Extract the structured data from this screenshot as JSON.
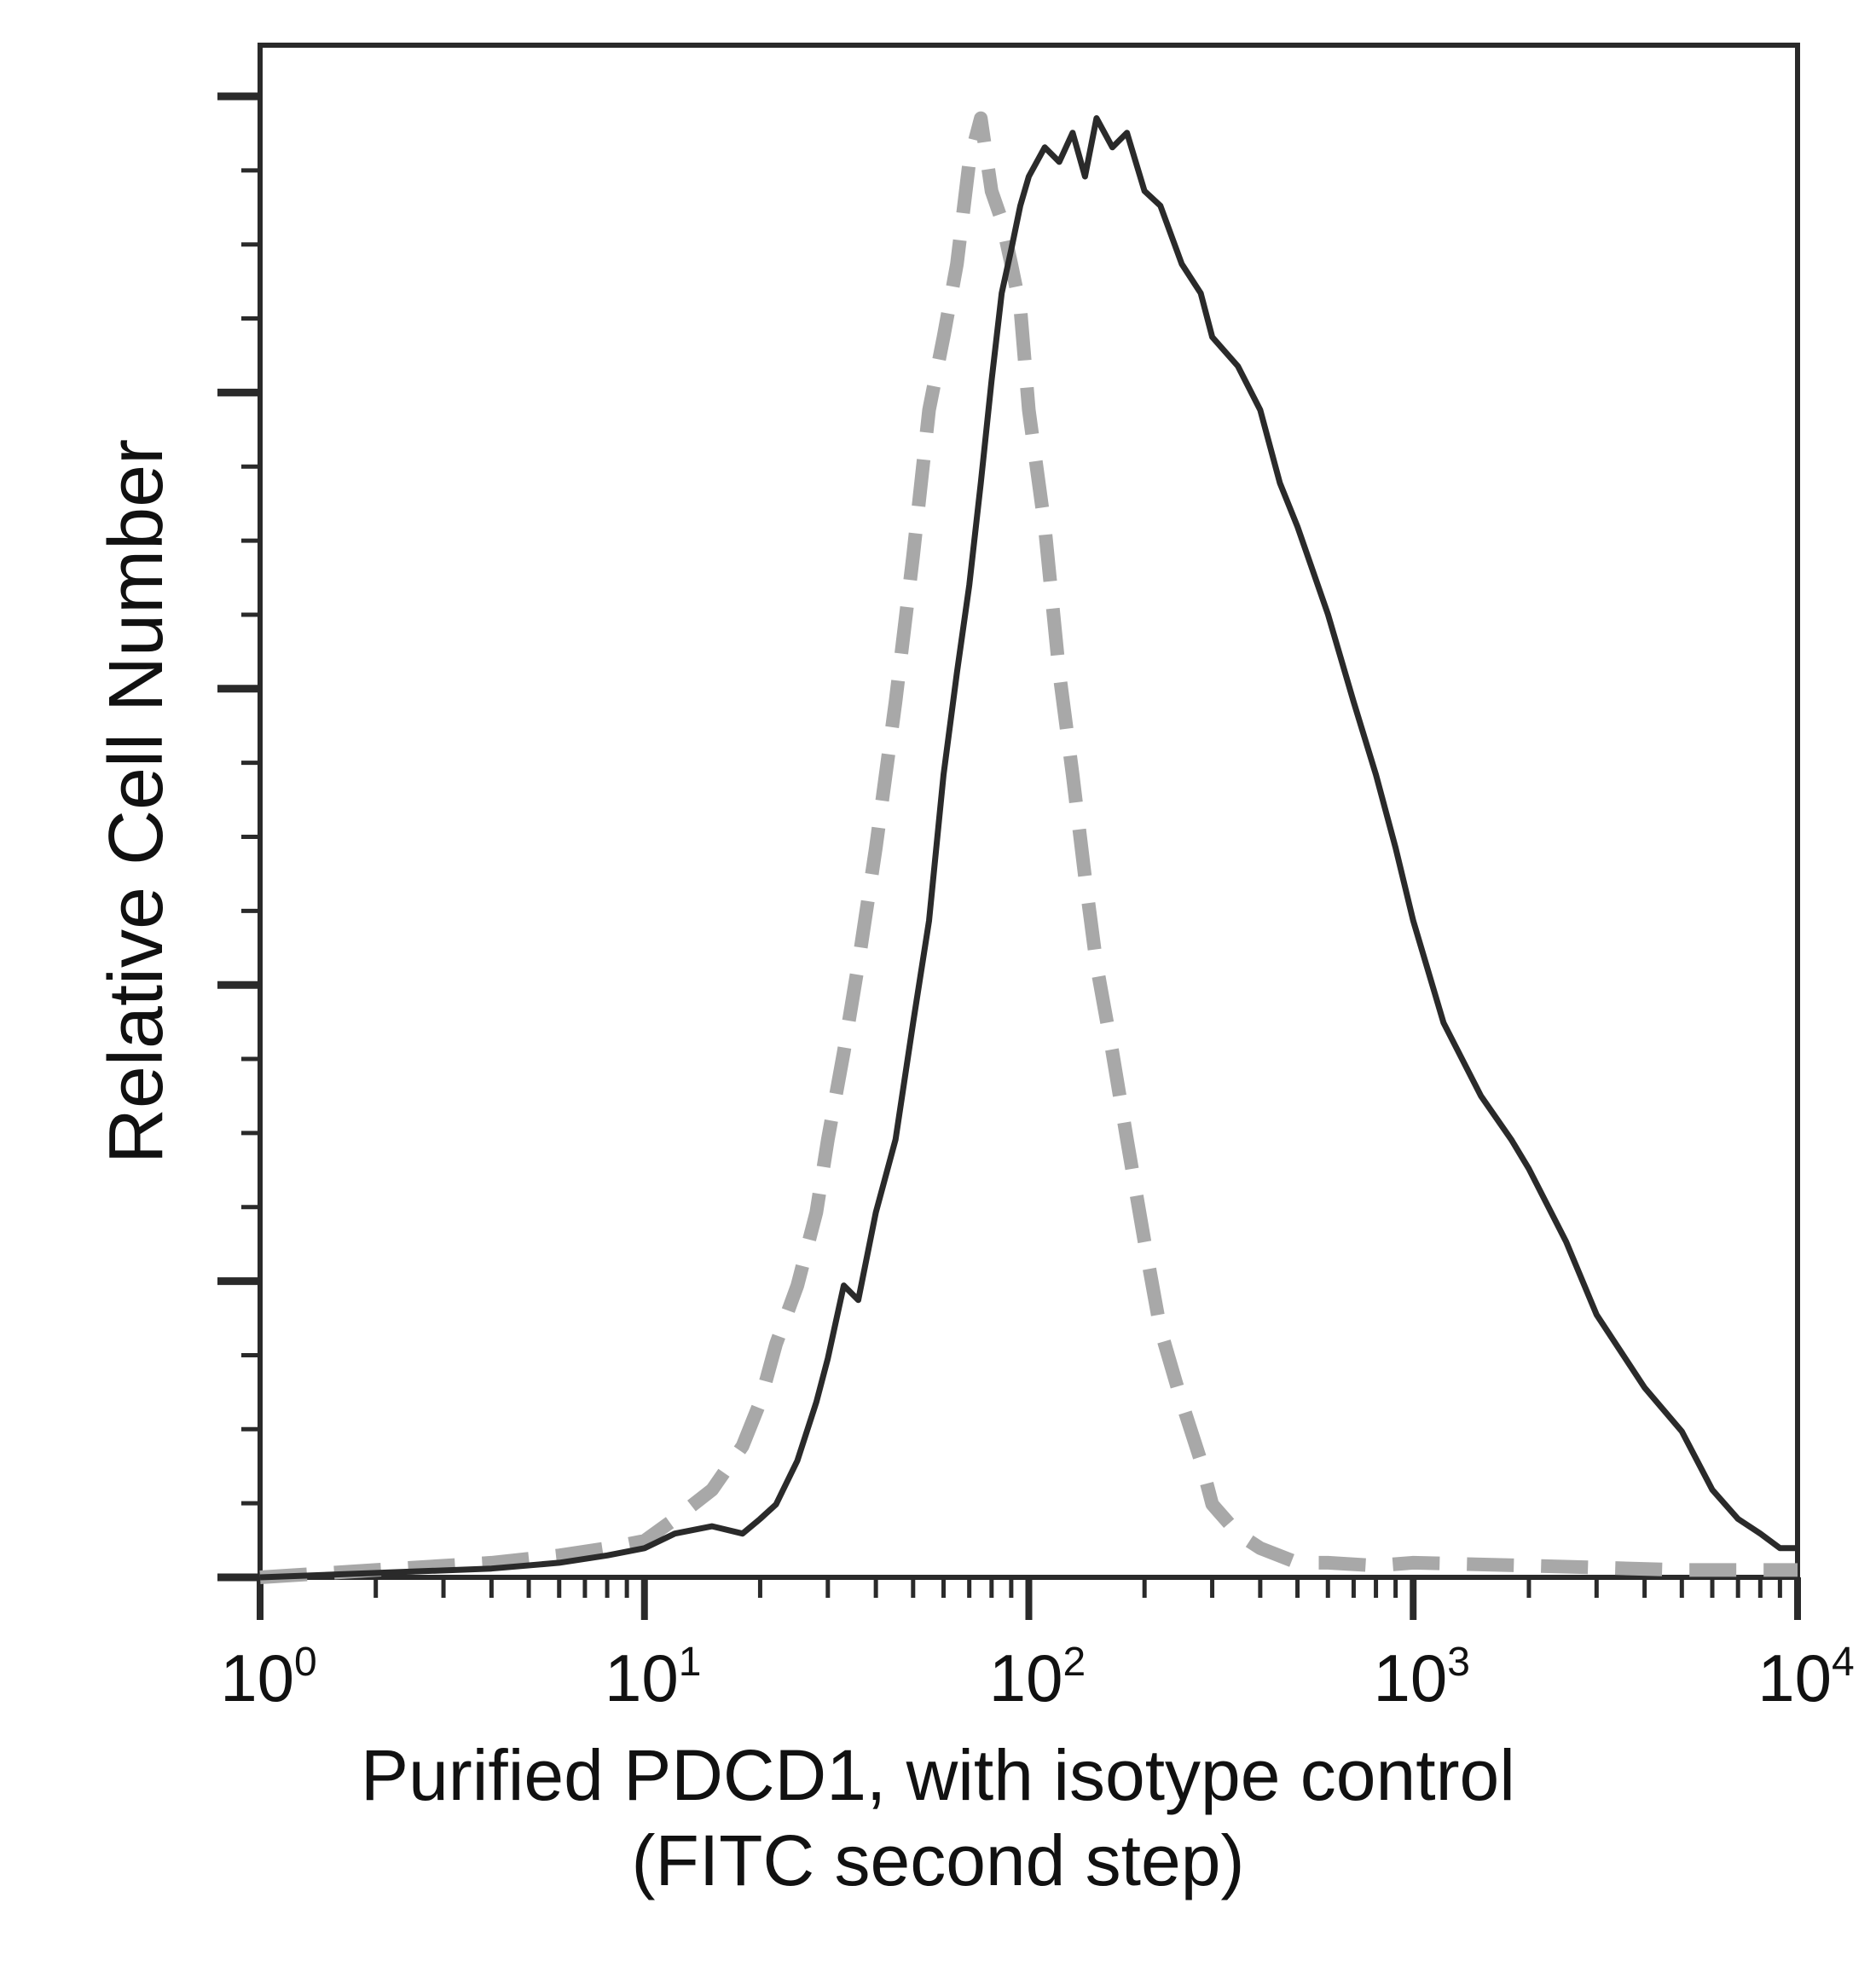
{
  "chart_data": {
    "type": "line",
    "title": "",
    "xlabel": [
      "Purified PDCD1, with isotype control",
      "(FITC second step)"
    ],
    "ylabel": "Relative Cell Number",
    "x_scale": "log",
    "xlim": [
      1,
      10000
    ],
    "ylim": [
      0,
      1.05
    ],
    "x_ticks": [
      {
        "base": "10",
        "exp": "0",
        "value": 1
      },
      {
        "base": "10",
        "exp": "1",
        "value": 10
      },
      {
        "base": "10",
        "exp": "2",
        "value": 100
      },
      {
        "base": "10",
        "exp": "3",
        "value": 1000
      },
      {
        "base": "10",
        "exp": "4",
        "value": 10000
      }
    ],
    "y_tick_labels": "none",
    "grid": false,
    "legend": "none",
    "series": [
      {
        "style": "dashed",
        "color": "#a8a8a8",
        "x": [
          1,
          2,
          4,
          6,
          8,
          10,
          12,
          15,
          18,
          20,
          22,
          25,
          28,
          30,
          33,
          36,
          40,
          45,
          50,
          55,
          60,
          65,
          70,
          75,
          80,
          85,
          90,
          95,
          100,
          110,
          120,
          130,
          140,
          150,
          165,
          180,
          200,
          220,
          250,
          280,
          300,
          350,
          400,
          500,
          600,
          800,
          1000,
          2000,
          5000,
          10000
        ],
        "y": [
          0.0,
          0.005,
          0.01,
          0.015,
          0.02,
          0.025,
          0.04,
          0.06,
          0.09,
          0.12,
          0.16,
          0.2,
          0.25,
          0.3,
          0.36,
          0.42,
          0.5,
          0.6,
          0.7,
          0.8,
          0.85,
          0.9,
          0.97,
          1.0,
          0.95,
          0.93,
          0.9,
          0.87,
          0.8,
          0.72,
          0.62,
          0.55,
          0.48,
          0.42,
          0.36,
          0.3,
          0.23,
          0.17,
          0.12,
          0.08,
          0.05,
          0.03,
          0.02,
          0.01,
          0.01,
          0.008,
          0.01,
          0.008,
          0.005,
          0.005
        ]
      },
      {
        "style": "solid",
        "color": "#2a2a2a",
        "x": [
          1,
          2,
          4,
          6,
          8,
          10,
          12,
          15,
          18,
          20,
          22,
          25,
          28,
          30,
          33,
          36,
          40,
          45,
          50,
          55,
          60,
          65,
          70,
          75,
          80,
          85,
          90,
          95,
          100,
          110,
          120,
          130,
          140,
          150,
          165,
          180,
          200,
          220,
          250,
          280,
          300,
          350,
          400,
          450,
          500,
          600,
          700,
          800,
          900,
          1000,
          1200,
          1500,
          1800,
          2000,
          2500,
          3000,
          4000,
          5000,
          6000,
          7000,
          8000,
          9000,
          10000
        ],
        "y": [
          0.0,
          0.003,
          0.006,
          0.01,
          0.015,
          0.02,
          0.03,
          0.035,
          0.03,
          0.04,
          0.05,
          0.08,
          0.12,
          0.15,
          0.2,
          0.19,
          0.25,
          0.3,
          0.38,
          0.45,
          0.55,
          0.62,
          0.68,
          0.75,
          0.82,
          0.88,
          0.91,
          0.94,
          0.96,
          0.98,
          0.97,
          0.99,
          0.96,
          1.0,
          0.98,
          0.99,
          0.95,
          0.94,
          0.9,
          0.88,
          0.85,
          0.83,
          0.8,
          0.75,
          0.72,
          0.66,
          0.6,
          0.55,
          0.5,
          0.45,
          0.38,
          0.33,
          0.3,
          0.28,
          0.23,
          0.18,
          0.13,
          0.1,
          0.06,
          0.04,
          0.03,
          0.02,
          0.02
        ]
      }
    ]
  }
}
